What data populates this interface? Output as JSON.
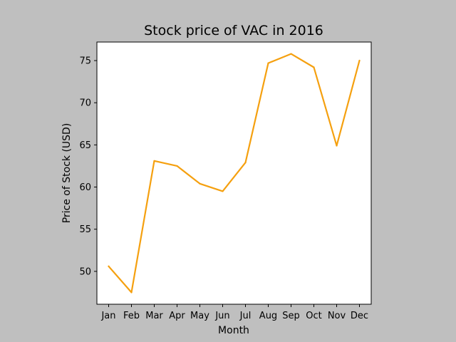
{
  "chart_data": {
    "type": "line",
    "title": "Stock price of VAC in 2016",
    "xlabel": "Month",
    "ylabel": "Price of Stock (USD)",
    "categories": [
      "Jan",
      "Feb",
      "Mar",
      "Apr",
      "May",
      "Jun",
      "Jul",
      "Aug",
      "Sep",
      "Oct",
      "Nov",
      "Dec"
    ],
    "series": [
      {
        "color": "#f5a00f",
        "values": [
          50.6,
          47.5,
          63.1,
          62.5,
          60.4,
          59.5,
          62.9,
          74.7,
          75.8,
          74.2,
          64.9,
          75.0
        ]
      }
    ],
    "ylim": [
      46.1,
      77.2
    ],
    "yticks": [
      50,
      55,
      60,
      65,
      70,
      75
    ],
    "grid": false,
    "legend": "none"
  }
}
